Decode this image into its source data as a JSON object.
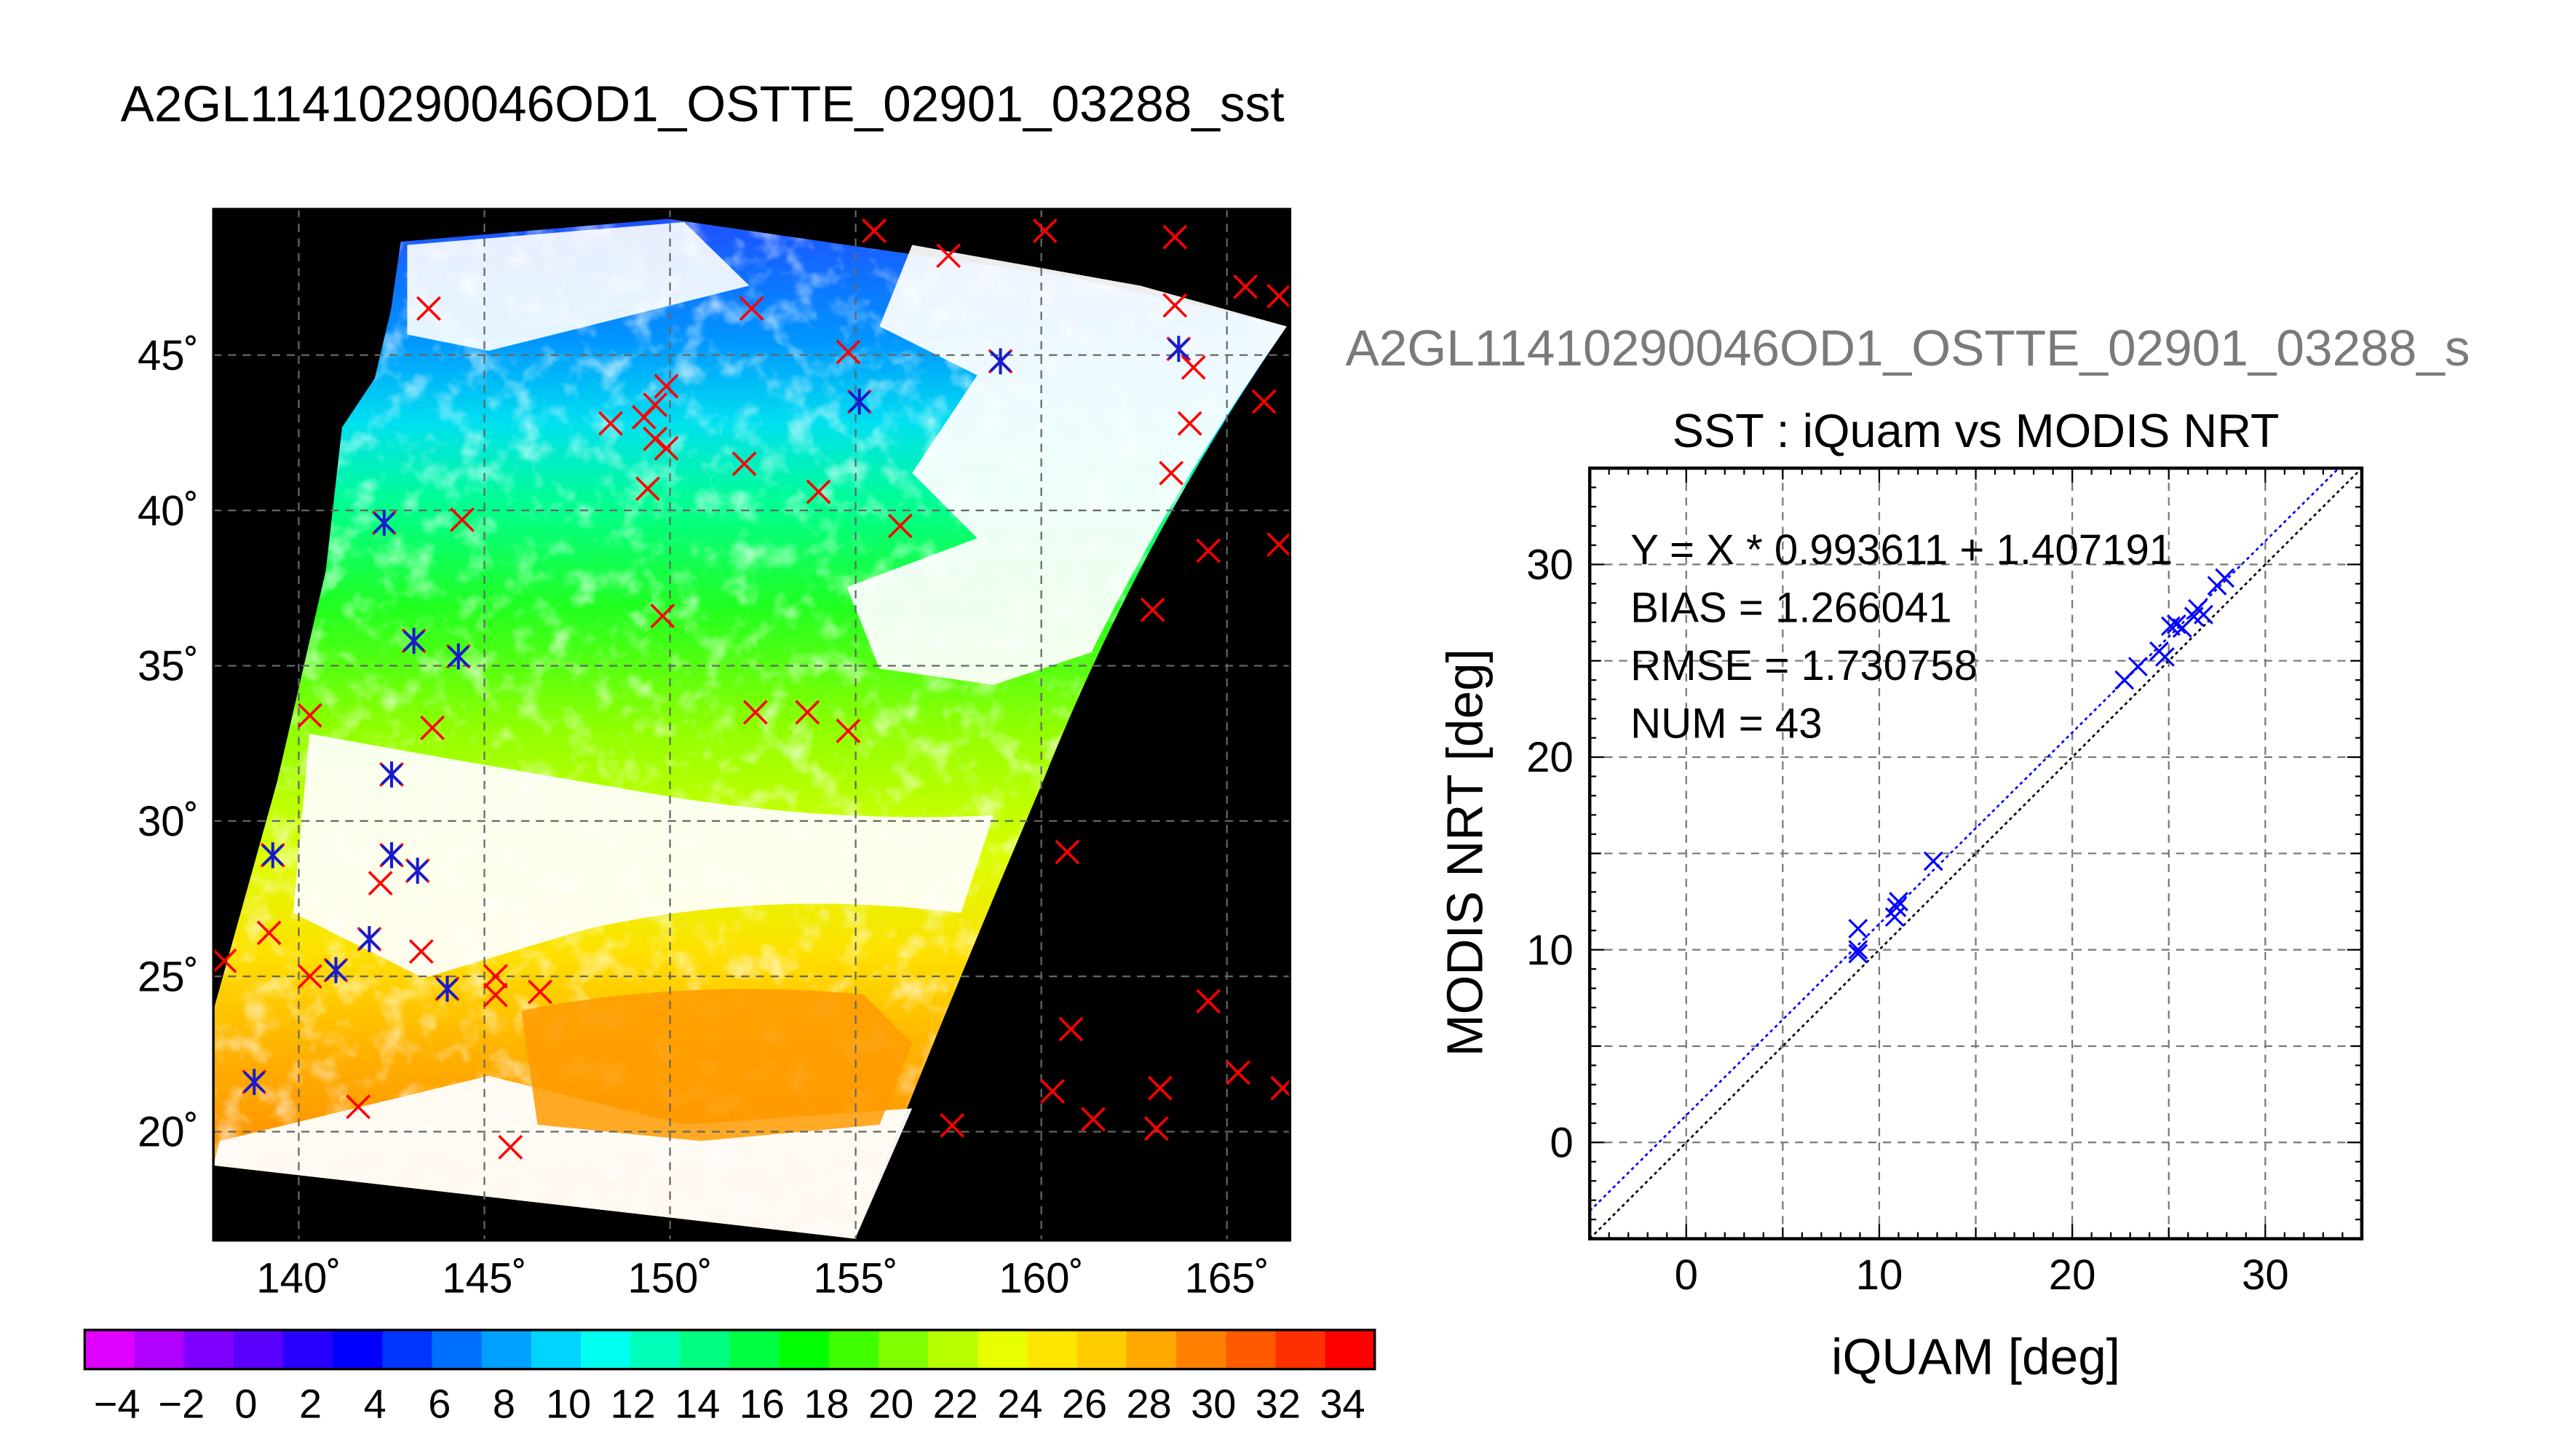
{
  "chart_data": [
    {
      "type": "heatmap",
      "title": "A2GL11410290046OD1_OSTTE_02901_03288_sst",
      "lon_ticks": [
        140,
        145,
        150,
        155,
        160,
        165
      ],
      "lat_ticks": [
        20,
        25,
        30,
        35,
        40,
        45
      ],
      "lon_range": [
        137.7,
        166.7
      ],
      "lat_range": [
        16.5,
        49.7
      ],
      "tick_suffix": "˚",
      "grid": true,
      "colorbar": {
        "min": -5,
        "max": 35,
        "labels": [
          "−4",
          "−2",
          "0",
          "2",
          "4",
          "6",
          "8",
          "10",
          "12",
          "14",
          "16",
          "18",
          "20",
          "22",
          "24",
          "26",
          "28",
          "30",
          "32",
          "34"
        ],
        "colors": [
          "#e000ff",
          "#b000ff",
          "#8000ff",
          "#5a00ff",
          "#2800ff",
          "#0000ff",
          "#0036ff",
          "#0070ff",
          "#00a0ff",
          "#00d4ff",
          "#00ffee",
          "#00ffb8",
          "#00ff80",
          "#00ff40",
          "#00ff00",
          "#40ff00",
          "#80ff00",
          "#b8ff00",
          "#e8ff00",
          "#ffe600",
          "#ffcc00",
          "#ffa800",
          "#ff8000",
          "#ff5a00",
          "#ff3000",
          "#ff0000"
        ]
      },
      "match_markers": [
        {
          "lon": 141.0,
          "lat": 25.2
        },
        {
          "lon": 142.5,
          "lat": 31.5
        },
        {
          "lon": 142.5,
          "lat": 28.9
        },
        {
          "lon": 143.2,
          "lat": 28.4
        },
        {
          "lon": 143.1,
          "lat": 35.8
        },
        {
          "lon": 144.3,
          "lat": 35.3
        },
        {
          "lon": 138.8,
          "lat": 21.6
        },
        {
          "lon": 139.3,
          "lat": 28.9
        },
        {
          "lon": 141.9,
          "lat": 26.2
        },
        {
          "lon": 144.0,
          "lat": 24.6
        },
        {
          "lon": 142.3,
          "lat": 39.6
        },
        {
          "lon": 155.1,
          "lat": 43.5
        },
        {
          "lon": 158.9,
          "lat": 44.8
        },
        {
          "lon": 163.7,
          "lat": 45.2
        }
      ],
      "buoy_markers": [
        {
          "lon": 138.0,
          "lat": 25.5
        },
        {
          "lon": 139.2,
          "lat": 26.4
        },
        {
          "lon": 140.3,
          "lat": 25.0
        },
        {
          "lon": 141.6,
          "lat": 20.8
        },
        {
          "lon": 142.2,
          "lat": 28.0
        },
        {
          "lon": 143.3,
          "lat": 25.8
        },
        {
          "lon": 145.3,
          "lat": 25.0
        },
        {
          "lon": 145.3,
          "lat": 24.4
        },
        {
          "lon": 146.5,
          "lat": 24.5
        },
        {
          "lon": 145.7,
          "lat": 19.5
        },
        {
          "lon": 140.3,
          "lat": 33.4
        },
        {
          "lon": 143.6,
          "lat": 33.0
        },
        {
          "lon": 144.4,
          "lat": 39.7
        },
        {
          "lon": 143.5,
          "lat": 46.5
        },
        {
          "lon": 148.4,
          "lat": 42.8
        },
        {
          "lon": 149.3,
          "lat": 43.0
        },
        {
          "lon": 149.6,
          "lat": 42.3
        },
        {
          "lon": 149.9,
          "lat": 42.0
        },
        {
          "lon": 149.6,
          "lat": 43.4
        },
        {
          "lon": 149.9,
          "lat": 44.0
        },
        {
          "lon": 149.4,
          "lat": 40.7
        },
        {
          "lon": 149.8,
          "lat": 36.6
        },
        {
          "lon": 152.0,
          "lat": 41.5
        },
        {
          "lon": 154.0,
          "lat": 40.6
        },
        {
          "lon": 156.2,
          "lat": 39.5
        },
        {
          "lon": 152.3,
          "lat": 33.5
        },
        {
          "lon": 153.7,
          "lat": 33.5
        },
        {
          "lon": 154.8,
          "lat": 32.9
        },
        {
          "lon": 152.2,
          "lat": 46.5
        },
        {
          "lon": 154.8,
          "lat": 45.1
        },
        {
          "lon": 155.5,
          "lat": 49.0
        },
        {
          "lon": 157.5,
          "lat": 48.2
        },
        {
          "lon": 160.1,
          "lat": 49.0
        },
        {
          "lon": 163.6,
          "lat": 48.8
        },
        {
          "lon": 163.6,
          "lat": 46.6
        },
        {
          "lon": 164.1,
          "lat": 44.6
        },
        {
          "lon": 165.5,
          "lat": 47.2
        },
        {
          "lon": 166.4,
          "lat": 46.9
        },
        {
          "lon": 166.0,
          "lat": 43.5
        },
        {
          "lon": 164.0,
          "lat": 42.8
        },
        {
          "lon": 163.5,
          "lat": 41.2
        },
        {
          "lon": 164.5,
          "lat": 38.7
        },
        {
          "lon": 166.4,
          "lat": 38.9
        },
        {
          "lon": 163.0,
          "lat": 36.8
        },
        {
          "lon": 160.7,
          "lat": 29.0
        },
        {
          "lon": 160.8,
          "lat": 23.3
        },
        {
          "lon": 160.3,
          "lat": 21.3
        },
        {
          "lon": 161.4,
          "lat": 20.4
        },
        {
          "lon": 163.2,
          "lat": 21.4
        },
        {
          "lon": 163.1,
          "lat": 20.1
        },
        {
          "lon": 164.5,
          "lat": 24.2
        },
        {
          "lon": 165.3,
          "lat": 21.9
        },
        {
          "lon": 166.5,
          "lat": 21.4
        },
        {
          "lon": 157.6,
          "lat": 20.2
        }
      ]
    },
    {
      "type": "scatter",
      "header": "A2GL11410290046OD1_OSTTE_02901_03288_s",
      "title": "SST : iQuam vs MODIS NRT",
      "xlabel": "iQUAM [deg]",
      "ylabel": "MODIS NRT [deg]",
      "xlim": [
        -5,
        35
      ],
      "ylim": [
        -5,
        35
      ],
      "xticks": [
        0,
        10,
        20,
        30
      ],
      "yticks": [
        0,
        10,
        20,
        30
      ],
      "grid": true,
      "annotations": [
        "Y = X * 0.993611 + 1.407191",
        "BIAS = 1.266041",
        "RMSE = 1.730758",
        "NUM = 43"
      ],
      "fit": {
        "slope": 0.993611,
        "intercept": 1.407191
      },
      "points": [
        {
          "x": 8.9,
          "y": 9.8
        },
        {
          "x": 8.9,
          "y": 10.0
        },
        {
          "x": 8.9,
          "y": 11.1
        },
        {
          "x": 10.8,
          "y": 11.7
        },
        {
          "x": 10.9,
          "y": 12.2
        },
        {
          "x": 11.0,
          "y": 12.5
        },
        {
          "x": 12.8,
          "y": 14.6
        },
        {
          "x": 22.7,
          "y": 24.0
        },
        {
          "x": 23.4,
          "y": 24.7
        },
        {
          "x": 24.5,
          "y": 25.5
        },
        {
          "x": 24.8,
          "y": 25.2
        },
        {
          "x": 25.1,
          "y": 26.8
        },
        {
          "x": 25.4,
          "y": 26.9
        },
        {
          "x": 25.7,
          "y": 26.7
        },
        {
          "x": 26.3,
          "y": 27.3
        },
        {
          "x": 26.5,
          "y": 27.7
        },
        {
          "x": 26.8,
          "y": 27.4
        },
        {
          "x": 27.5,
          "y": 28.9
        },
        {
          "x": 27.9,
          "y": 29.3
        }
      ]
    }
  ]
}
